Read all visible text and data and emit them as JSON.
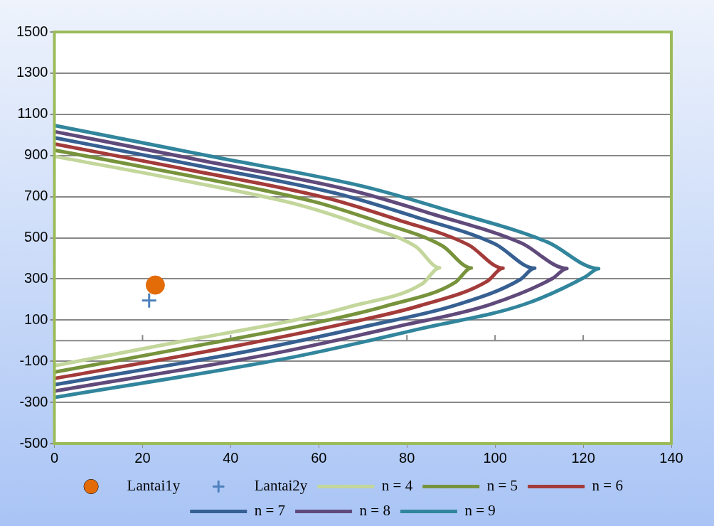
{
  "chart_data": {
    "type": "line",
    "xlim": [
      0,
      140
    ],
    "xticks": [
      0,
      20,
      40,
      60,
      80,
      100,
      120,
      140
    ],
    "ylim": [
      -500,
      1500
    ],
    "yticks": [
      -500,
      -300,
      -100,
      100,
      300,
      500,
      700,
      900,
      1100,
      1300,
      1500
    ],
    "grid": "y",
    "legend": "bottom",
    "line_style": "solid",
    "series": [
      {
        "name": "Lantai1y",
        "type": "scatter",
        "marker": "circle",
        "color": "#e36c09",
        "x": [
          22.9
        ],
        "values": [
          270
        ]
      },
      {
        "name": "Lantai2y",
        "type": "scatter",
        "marker": "cross",
        "color": "#4f81bd",
        "x": [
          21.5
        ],
        "values": [
          195
        ]
      },
      {
        "name": "n = 4",
        "color": "#c3d69b",
        "marker": "none",
        "x": [
          0,
          30,
          56,
          70,
          82,
          87.4,
          83.5,
          67.4,
          54.6,
          31.4,
          0
        ],
        "values": [
          896,
          775,
          657,
          560,
          457,
          354,
          277,
          167,
          100,
          7,
          -122
        ]
      },
      {
        "name": "n = 5",
        "color": "#77933c",
        "marker": "none",
        "x": [
          0,
          31,
          59,
          74,
          88,
          94.6,
          91,
          75.3,
          60.4,
          36,
          0
        ],
        "values": [
          926,
          800,
          675,
          574,
          461,
          353,
          284,
          169,
          92,
          -10,
          -153
        ]
      },
      {
        "name": "n = 6",
        "color": "#a33b3a",
        "marker": "none",
        "x": [
          0,
          32,
          62,
          78,
          94,
          101.8,
          98.3,
          83.1,
          66.2,
          40.9,
          0
        ],
        "values": [
          956,
          824,
          692,
          587,
          465,
          352,
          290,
          171,
          84,
          -27,
          -184
        ]
      },
      {
        "name": "n = 7",
        "color": "#376092",
        "marker": "none",
        "x": [
          0,
          33,
          65,
          82,
          100,
          109,
          105.7,
          91,
          72,
          45.7,
          0
        ],
        "values": [
          986,
          849,
          710,
          601,
          470,
          352,
          297,
          172,
          76,
          -44,
          -214
        ]
      },
      {
        "name": "n = 8",
        "color": "#604a7b",
        "marker": "none",
        "x": [
          0,
          34,
          68,
          86,
          106,
          116.3,
          113.1,
          98.8,
          77.7,
          50.1,
          0
        ],
        "values": [
          1016,
          873,
          727,
          614,
          474,
          351,
          303,
          175,
          68,
          -61,
          -245
        ]
      },
      {
        "name": "n = 9",
        "color": "#31859c",
        "marker": "none",
        "x": [
          0,
          35,
          71,
          90,
          112,
          123.5,
          120.5,
          106.7,
          83.5,
          54.6,
          0
        ],
        "values": [
          1046,
          898,
          745,
          628,
          478,
          350,
          310,
          177,
          60,
          -78,
          -276
        ]
      }
    ]
  }
}
